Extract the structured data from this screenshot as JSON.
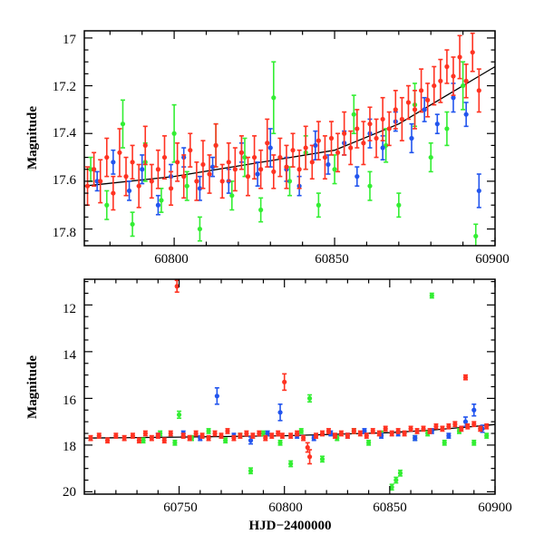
{
  "chart_data": [
    {
      "type": "scatter",
      "title": "",
      "xlabel": "",
      "ylabel": "Magnitude",
      "xlim": [
        60772,
        60900
      ],
      "ylim": [
        17.87,
        16.97
      ],
      "y_inverted": true,
      "x_ticks": [
        "60800",
        "60850",
        "60900"
      ],
      "y_ticks": [
        "17",
        "17.2",
        "17.4",
        "17.6",
        "17.8"
      ],
      "grid": false,
      "legend": "none",
      "colors": {
        "green": "#33ee33",
        "blue": "#2255ee",
        "red": "#ff3322",
        "line": "#000000"
      },
      "trend_line": {
        "x": [
          60772,
          60800,
          60850,
          60870,
          60885,
          60895,
          60900
        ],
        "y": [
          17.62,
          17.58,
          17.47,
          17.36,
          17.24,
          17.16,
          17.12
        ]
      },
      "series": [
        {
          "color": "green",
          "x": [
            60774,
            60779,
            60784,
            60787,
            60791,
            60796,
            60800,
            60804,
            60808,
            60813,
            60818,
            60822,
            60827,
            60831,
            60836,
            60841,
            60845,
            60850,
            60856,
            60861,
            60866,
            60870,
            60875,
            60880,
            60885,
            60890,
            60894
          ],
          "y": [
            17.55,
            17.7,
            17.36,
            17.78,
            17.52,
            17.68,
            17.4,
            17.62,
            17.8,
            17.45,
            17.66,
            17.5,
            17.72,
            17.25,
            17.6,
            17.48,
            17.7,
            17.55,
            17.32,
            17.62,
            17.45,
            17.7,
            17.28,
            17.5,
            17.38,
            17.2,
            17.83
          ],
          "err": [
            0.05,
            0.06,
            0.1,
            0.05,
            0.08,
            0.05,
            0.12,
            0.06,
            0.05,
            0.09,
            0.06,
            0.08,
            0.05,
            0.15,
            0.06,
            0.07,
            0.05,
            0.06,
            0.08,
            0.06,
            0.07,
            0.05,
            0.09,
            0.06,
            0.07,
            0.1,
            0.05
          ]
        },
        {
          "color": "blue",
          "x": [
            60776,
            60781,
            60786,
            60790,
            60795,
            60799,
            60803,
            60808,
            60812,
            60817,
            60821,
            60826,
            60830,
            60835,
            60839,
            60844,
            60848,
            60853,
            60857,
            60861,
            60865,
            60869,
            60874,
            60878,
            60882,
            60887,
            60891,
            60895
          ],
          "y": [
            17.6,
            17.52,
            17.64,
            17.55,
            17.7,
            17.58,
            17.5,
            17.63,
            17.54,
            17.6,
            17.48,
            17.57,
            17.46,
            17.55,
            17.62,
            17.45,
            17.53,
            17.44,
            17.58,
            17.4,
            17.46,
            17.35,
            17.42,
            17.3,
            17.36,
            17.25,
            17.32,
            17.64
          ],
          "err": [
            0.04,
            0.05,
            0.04,
            0.06,
            0.04,
            0.05,
            0.04,
            0.05,
            0.04,
            0.05,
            0.04,
            0.05,
            0.08,
            0.05,
            0.04,
            0.06,
            0.04,
            0.05,
            0.04,
            0.06,
            0.05,
            0.04,
            0.06,
            0.05,
            0.04,
            0.06,
            0.05,
            0.07
          ]
        },
        {
          "color": "red",
          "x": [
            60773,
            60775,
            60777,
            60779,
            60781,
            60783,
            60785,
            60787,
            60789,
            60791,
            60793,
            60795,
            60797,
            60799,
            60801,
            60803,
            60805,
            60807,
            60809,
            60811,
            60813,
            60815,
            60817,
            60819,
            60821,
            60823,
            60825,
            60827,
            60829,
            60831,
            60833,
            60835,
            60837,
            60839,
            60841,
            60843,
            60845,
            60847,
            60849,
            60851,
            60853,
            60855,
            60857,
            60859,
            60861,
            60863,
            60865,
            60867,
            60869,
            60871,
            60873,
            60875,
            60877,
            60879,
            60881,
            60883,
            60885,
            60887,
            60889,
            60891,
            60893,
            60895
          ],
          "y": [
            17.62,
            17.55,
            17.6,
            17.5,
            17.65,
            17.48,
            17.58,
            17.52,
            17.62,
            17.45,
            17.6,
            17.55,
            17.5,
            17.63,
            17.52,
            17.58,
            17.47,
            17.6,
            17.53,
            17.57,
            17.45,
            17.6,
            17.52,
            17.55,
            17.48,
            17.58,
            17.5,
            17.55,
            17.44,
            17.56,
            17.5,
            17.54,
            17.47,
            17.55,
            17.46,
            17.52,
            17.43,
            17.5,
            17.42,
            17.48,
            17.4,
            17.46,
            17.38,
            17.44,
            17.36,
            17.42,
            17.34,
            17.38,
            17.3,
            17.34,
            17.27,
            17.3,
            17.22,
            17.26,
            17.2,
            17.18,
            17.12,
            17.16,
            17.08,
            17.18,
            17.06,
            17.22
          ],
          "err": [
            0.08,
            0.07,
            0.09,
            0.08,
            0.07,
            0.1,
            0.08,
            0.07,
            0.09,
            0.08,
            0.07,
            0.08,
            0.09,
            0.07,
            0.08,
            0.09,
            0.07,
            0.08,
            0.1,
            0.08,
            0.09,
            0.07,
            0.08,
            0.09,
            0.07,
            0.08,
            0.09,
            0.08,
            0.1,
            0.07,
            0.08,
            0.09,
            0.07,
            0.08,
            0.09,
            0.07,
            0.08,
            0.09,
            0.07,
            0.08,
            0.09,
            0.07,
            0.08,
            0.09,
            0.07,
            0.08,
            0.09,
            0.07,
            0.08,
            0.09,
            0.07,
            0.08,
            0.09,
            0.07,
            0.08,
            0.09,
            0.07,
            0.08,
            0.09,
            0.07,
            0.08,
            0.09
          ]
        }
      ]
    },
    {
      "type": "scatter",
      "title": "",
      "xlabel": "HJD−2400000",
      "ylabel": "Magnitude",
      "xlim": [
        60705,
        60900
      ],
      "ylim": [
        20.1,
        10.9
      ],
      "y_inverted": true,
      "x_ticks": [
        "60750",
        "60800",
        "60850",
        "60900"
      ],
      "y_ticks": [
        "12",
        "14",
        "16",
        "18",
        "20"
      ],
      "grid": false,
      "legend": "none",
      "colors": {
        "green": "#33ee33",
        "blue": "#2255ee",
        "red": "#ff3322",
        "line": "#000000"
      },
      "trend_line": {
        "x": [
          60705,
          60750,
          60800,
          60850,
          60870,
          60885,
          60895,
          60900
        ],
        "y": [
          17.7,
          17.66,
          17.6,
          17.47,
          17.36,
          17.24,
          17.16,
          17.12
        ]
      },
      "series": [
        {
          "color": "green",
          "x": [
            60733,
            60741,
            60748,
            60750,
            60756,
            60764,
            60772,
            60779,
            60784,
            60790,
            60798,
            60803,
            60808,
            60812,
            60818,
            60825,
            60833,
            60840,
            60846,
            60851,
            60853,
            60855,
            60862,
            60868,
            60870,
            60876,
            60883,
            60890,
            60896
          ],
          "y": [
            17.8,
            17.5,
            17.9,
            16.7,
            17.7,
            17.4,
            17.8,
            17.6,
            19.1,
            17.5,
            17.9,
            18.8,
            17.4,
            16.0,
            18.6,
            17.7,
            17.4,
            17.9,
            17.5,
            19.8,
            19.5,
            19.2,
            17.7,
            17.5,
            11.6,
            17.9,
            17.4,
            17.9,
            17.6
          ],
          "err": [
            0.1,
            0.1,
            0.1,
            0.15,
            0.1,
            0.1,
            0.1,
            0.1,
            0.12,
            0.1,
            0.1,
            0.12,
            0.1,
            0.15,
            0.12,
            0.1,
            0.1,
            0.1,
            0.1,
            0.12,
            0.12,
            0.12,
            0.1,
            0.1,
            0.1,
            0.1,
            0.1,
            0.1,
            0.1
          ]
        },
        {
          "color": "blue",
          "x": [
            60740,
            60752,
            60760,
            60768,
            60776,
            60784,
            60792,
            60798,
            60806,
            60814,
            60822,
            60830,
            60838,
            60846,
            60854,
            60862,
            60870,
            60878,
            60886,
            60890,
            60894
          ],
          "y": [
            17.6,
            17.5,
            17.7,
            15.9,
            17.6,
            17.8,
            17.5,
            16.6,
            17.6,
            17.7,
            17.5,
            17.6,
            17.4,
            17.6,
            17.5,
            17.7,
            17.4,
            17.6,
            17.0,
            16.5,
            17.3
          ],
          "err": [
            0.1,
            0.1,
            0.1,
            0.35,
            0.1,
            0.15,
            0.1,
            0.35,
            0.1,
            0.1,
            0.1,
            0.1,
            0.1,
            0.1,
            0.1,
            0.1,
            0.1,
            0.1,
            0.2,
            0.25,
            0.15
          ]
        },
        {
          "color": "red",
          "x": [
            60708,
            60712,
            60716,
            60720,
            60724,
            60728,
            60731,
            60734,
            60737,
            60740,
            60743,
            60746,
            60749,
            60752,
            60755,
            60758,
            60761,
            60764,
            60767,
            60770,
            60773,
            60776,
            60779,
            60782,
            60785,
            60788,
            60791,
            60794,
            60797,
            60799,
            60800,
            60803,
            60806,
            60809,
            60811,
            60812,
            60815,
            60818,
            60821,
            60824,
            60827,
            60830,
            60833,
            60836,
            60839,
            60842,
            60845,
            60848,
            60851,
            60854,
            60857,
            60860,
            60863,
            60866,
            60869,
            60872,
            60875,
            60878,
            60881,
            60884,
            60886,
            60887,
            60890,
            60893,
            60896
          ],
          "y": [
            17.7,
            17.6,
            17.8,
            17.6,
            17.7,
            17.6,
            17.8,
            17.5,
            17.7,
            17.6,
            17.8,
            17.5,
            11.2,
            17.6,
            17.7,
            17.5,
            17.6,
            17.7,
            17.5,
            17.6,
            17.4,
            17.7,
            17.6,
            17.5,
            17.6,
            17.5,
            17.7,
            17.6,
            17.5,
            17.6,
            15.3,
            17.6,
            17.5,
            17.7,
            18.1,
            18.5,
            17.6,
            17.5,
            17.4,
            17.6,
            17.5,
            17.6,
            17.4,
            17.5,
            17.6,
            17.4,
            17.5,
            17.3,
            17.5,
            17.4,
            17.5,
            17.3,
            17.4,
            17.3,
            17.4,
            17.2,
            17.3,
            17.2,
            17.1,
            17.3,
            15.1,
            17.2,
            17.1,
            17.3,
            17.2
          ],
          "err": [
            0.1,
            0.1,
            0.1,
            0.1,
            0.1,
            0.1,
            0.1,
            0.1,
            0.1,
            0.1,
            0.1,
            0.1,
            0.25,
            0.1,
            0.1,
            0.1,
            0.1,
            0.1,
            0.1,
            0.1,
            0.1,
            0.1,
            0.1,
            0.1,
            0.1,
            0.1,
            0.1,
            0.1,
            0.1,
            0.1,
            0.35,
            0.1,
            0.1,
            0.1,
            0.2,
            0.3,
            0.1,
            0.1,
            0.1,
            0.1,
            0.1,
            0.1,
            0.1,
            0.1,
            0.1,
            0.1,
            0.1,
            0.1,
            0.1,
            0.1,
            0.1,
            0.1,
            0.1,
            0.1,
            0.1,
            0.1,
            0.1,
            0.1,
            0.1,
            0.1,
            0.1,
            0.1,
            0.1,
            0.1,
            0.1
          ]
        }
      ]
    }
  ]
}
